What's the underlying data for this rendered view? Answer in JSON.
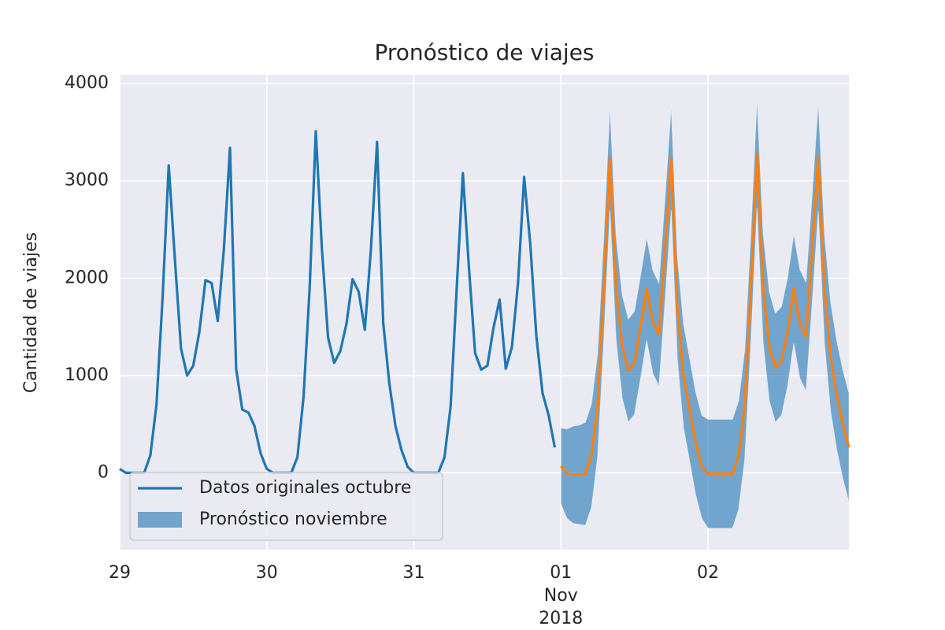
{
  "chart_data": {
    "type": "line",
    "title": "Pronóstico de viajes",
    "ylabel": "Cantidad de viajes",
    "grid": true,
    "legend": "lower left",
    "xlim": [
      "2018-10-29T00:00",
      "2018-11-02T23:00"
    ],
    "xticks": [
      {
        "value": "2018-10-29T00:00",
        "label": "29"
      },
      {
        "value": "2018-10-30T00:00",
        "label": "30"
      },
      {
        "value": "2018-10-31T00:00",
        "label": "31"
      },
      {
        "value": "2018-11-01T00:00",
        "label": "01\nNov\n2018"
      },
      {
        "value": "2018-11-02T00:00",
        "label": "02"
      }
    ],
    "ylim": [
      -790,
      4090
    ],
    "yticks": [
      0,
      1000,
      2000,
      3000,
      4000
    ],
    "series": [
      {
        "name": "Datos originales octubre",
        "color": "#1f77b4",
        "x": [
          "2018-10-29T00:00",
          "2018-10-29T01:00",
          "2018-10-29T02:00",
          "2018-10-29T03:00",
          "2018-10-29T04:00",
          "2018-10-29T05:00",
          "2018-10-29T06:00",
          "2018-10-29T07:00",
          "2018-10-29T08:00",
          "2018-10-29T09:00",
          "2018-10-29T10:00",
          "2018-10-29T11:00",
          "2018-10-29T12:00",
          "2018-10-29T13:00",
          "2018-10-29T14:00",
          "2018-10-29T15:00",
          "2018-10-29T16:00",
          "2018-10-29T17:00",
          "2018-10-29T18:00",
          "2018-10-29T19:00",
          "2018-10-29T20:00",
          "2018-10-29T21:00",
          "2018-10-29T22:00",
          "2018-10-29T23:00",
          "2018-10-30T00:00",
          "2018-10-30T01:00",
          "2018-10-30T02:00",
          "2018-10-30T03:00",
          "2018-10-30T04:00",
          "2018-10-30T05:00",
          "2018-10-30T06:00",
          "2018-10-30T07:00",
          "2018-10-30T08:00",
          "2018-10-30T09:00",
          "2018-10-30T10:00",
          "2018-10-30T11:00",
          "2018-10-30T12:00",
          "2018-10-30T13:00",
          "2018-10-30T14:00",
          "2018-10-30T15:00",
          "2018-10-30T16:00",
          "2018-10-30T17:00",
          "2018-10-30T18:00",
          "2018-10-30T19:00",
          "2018-10-30T20:00",
          "2018-10-30T21:00",
          "2018-10-30T22:00",
          "2018-10-30T23:00",
          "2018-10-31T00:00",
          "2018-10-31T01:00",
          "2018-10-31T02:00",
          "2018-10-31T03:00",
          "2018-10-31T04:00",
          "2018-10-31T05:00",
          "2018-10-31T06:00",
          "2018-10-31T07:00",
          "2018-10-31T08:00",
          "2018-10-31T09:00",
          "2018-10-31T10:00",
          "2018-10-31T11:00",
          "2018-10-31T12:00",
          "2018-10-31T13:00",
          "2018-10-31T14:00",
          "2018-10-31T15:00",
          "2018-10-31T16:00",
          "2018-10-31T17:00",
          "2018-10-31T18:00",
          "2018-10-31T19:00",
          "2018-10-31T20:00",
          "2018-10-31T21:00",
          "2018-10-31T22:00",
          "2018-10-31T23:00"
        ],
        "values": [
          40,
          0,
          0,
          0,
          0,
          180,
          700,
          1800,
          3160,
          2200,
          1280,
          1000,
          1100,
          1450,
          1980,
          1950,
          1560,
          2300,
          3340,
          1070,
          650,
          620,
          480,
          200,
          40,
          0,
          0,
          0,
          0,
          160,
          780,
          1900,
          3510,
          2300,
          1390,
          1130,
          1250,
          1530,
          1990,
          1860,
          1470,
          2300,
          3400,
          1540,
          920,
          480,
          230,
          60,
          0,
          0,
          0,
          0,
          0,
          160,
          680,
          1900,
          3080,
          2100,
          1230,
          1060,
          1100,
          1490,
          1780,
          1070,
          1290,
          1950,
          3040,
          2350,
          1400,
          820,
          590,
          260
        ]
      }
    ],
    "forecast": {
      "name": "Pronóstico noviembre",
      "line_color": "#ff7f0e",
      "band_color": "#1f77b4",
      "x": [
        "2018-11-01T00:00",
        "2018-11-01T01:00",
        "2018-11-01T02:00",
        "2018-11-01T03:00",
        "2018-11-01T04:00",
        "2018-11-01T05:00",
        "2018-11-01T06:00",
        "2018-11-01T07:00",
        "2018-11-01T08:00",
        "2018-11-01T09:00",
        "2018-11-01T10:00",
        "2018-11-01T11:00",
        "2018-11-01T12:00",
        "2018-11-01T13:00",
        "2018-11-01T14:00",
        "2018-11-01T15:00",
        "2018-11-01T16:00",
        "2018-11-01T17:00",
        "2018-11-01T18:00",
        "2018-11-01T19:00",
        "2018-11-01T20:00",
        "2018-11-01T21:00",
        "2018-11-01T22:00",
        "2018-11-01T23:00",
        "2018-11-02T00:00",
        "2018-11-02T01:00",
        "2018-11-02T02:00",
        "2018-11-02T03:00",
        "2018-11-02T04:00",
        "2018-11-02T05:00",
        "2018-11-02T06:00",
        "2018-11-02T07:00",
        "2018-11-02T08:00",
        "2018-11-02T09:00",
        "2018-11-02T10:00",
        "2018-11-02T11:00",
        "2018-11-02T12:00",
        "2018-11-02T13:00",
        "2018-11-02T14:00",
        "2018-11-02T15:00",
        "2018-11-02T16:00",
        "2018-11-02T17:00",
        "2018-11-02T18:00",
        "2018-11-02T19:00",
        "2018-11-02T20:00",
        "2018-11-02T21:00",
        "2018-11-02T22:00",
        "2018-11-02T23:00"
      ],
      "values": [
        70,
        -10,
        -20,
        -20,
        -10,
        180,
        700,
        1900,
        3230,
        1900,
        1300,
        1050,
        1130,
        1500,
        1890,
        1550,
        1420,
        2300,
        3230,
        1700,
        1000,
        650,
        300,
        60,
        -10,
        -10,
        -10,
        -10,
        -10,
        180,
        700,
        1900,
        3280,
        1900,
        1300,
        1080,
        1150,
        1450,
        1890,
        1530,
        1400,
        2300,
        3250,
        1900,
        1200,
        800,
        500,
        260
      ],
      "upper": [
        460,
        450,
        480,
        490,
        520,
        710,
        1230,
        2430,
        3760,
        2430,
        1830,
        1580,
        1660,
        2030,
        2420,
        2080,
        1950,
        2830,
        3760,
        2230,
        1530,
        1180,
        830,
        590,
        550,
        550,
        550,
        550,
        550,
        740,
        1260,
        2460,
        3840,
        2460,
        1860,
        1640,
        1710,
        2010,
        2450,
        2090,
        1960,
        2860,
        3810,
        2460,
        1760,
        1360,
        1060,
        820
      ],
      "lower": [
        -320,
        -470,
        -520,
        -530,
        -540,
        -350,
        170,
        1370,
        2700,
        1370,
        770,
        520,
        600,
        970,
        1360,
        1020,
        890,
        1770,
        2700,
        1170,
        470,
        120,
        -230,
        -470,
        -570,
        -570,
        -570,
        -570,
        -570,
        -380,
        140,
        1340,
        2720,
        1340,
        740,
        520,
        590,
        890,
        1330,
        970,
        840,
        1740,
        2690,
        1340,
        640,
        240,
        -60,
        -300
      ]
    }
  }
}
